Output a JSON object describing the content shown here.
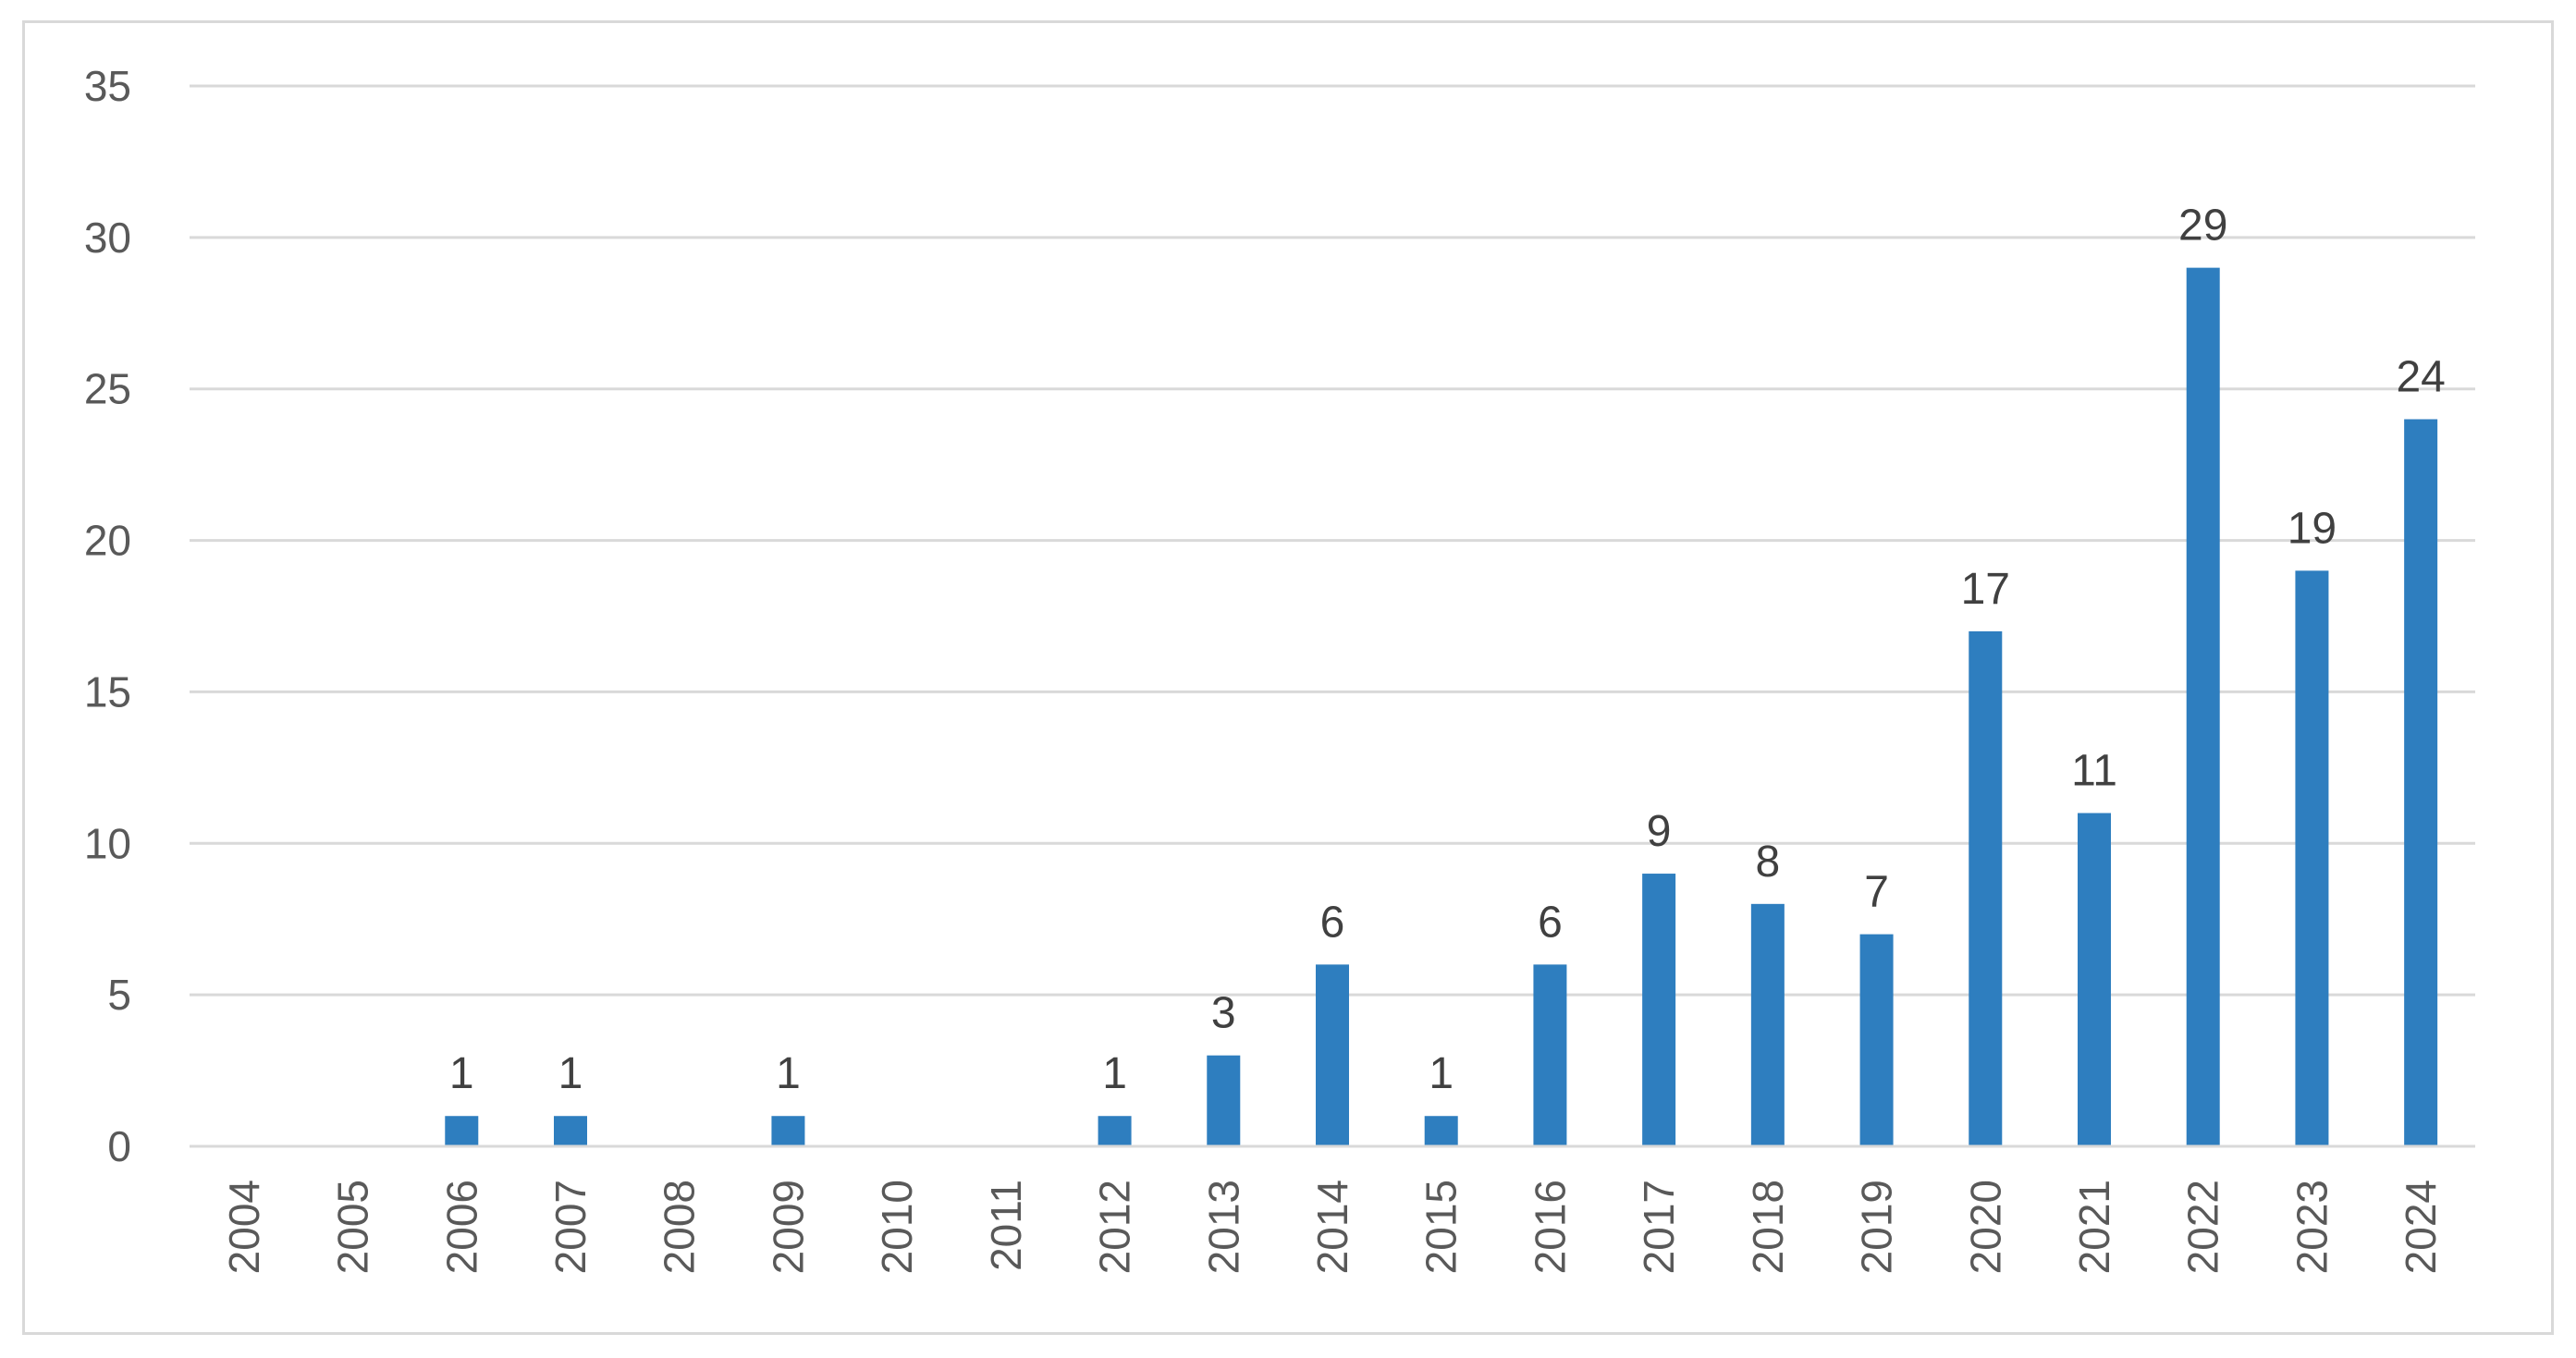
{
  "chart_data": {
    "type": "bar",
    "categories": [
      "2004",
      "2005",
      "2006",
      "2007",
      "2008",
      "2009",
      "2010",
      "2011",
      "2012",
      "2013",
      "2014",
      "2015",
      "2016",
      "2017",
      "2018",
      "2019",
      "2020",
      "2021",
      "2022",
      "2023",
      "2024"
    ],
    "values": [
      0,
      0,
      1,
      1,
      0,
      1,
      0,
      0,
      1,
      3,
      6,
      1,
      6,
      9,
      8,
      7,
      17,
      11,
      29,
      19,
      24
    ],
    "data_labels": [
      "",
      "",
      "1",
      "1",
      "",
      "1",
      "",
      "",
      "1",
      "3",
      "6",
      "1",
      "6",
      "9",
      "8",
      "7",
      "17",
      "11",
      "29",
      "19",
      "24"
    ],
    "yticks": [
      "0",
      "5",
      "10",
      "15",
      "20",
      "25",
      "30",
      "35"
    ],
    "ylim": [
      0,
      35
    ],
    "grid": true,
    "legend": "none",
    "bar_color": "#2e7ebf",
    "grid_color": "#d9d9d9",
    "title": "",
    "xlabel": "",
    "ylabel": ""
  }
}
